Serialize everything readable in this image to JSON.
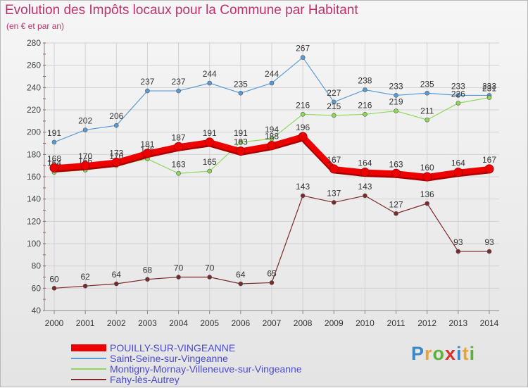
{
  "chart_data": {
    "type": "line",
    "title": "Evolution des Impôts locaux pour la Commune par Habitant",
    "subtitle": "(en € et par an)",
    "xlabel": "",
    "ylabel": "",
    "x": [
      "2000",
      "2001",
      "2002",
      "2003",
      "2004",
      "2005",
      "2006",
      "2007",
      "2008",
      "2009",
      "2010",
      "2011",
      "2012",
      "2013",
      "2014"
    ],
    "ylim": [
      40,
      280
    ],
    "yticks": [
      40,
      60,
      80,
      100,
      120,
      140,
      160,
      180,
      200,
      220,
      240,
      260,
      280
    ],
    "grid": true,
    "legend_position": "bottom-left",
    "series": [
      {
        "name": "Saint-Seine-sur-Vingeanne",
        "color": "#5b9bd5",
        "values": [
          191,
          202,
          206,
          237,
          237,
          244,
          235,
          244,
          267,
          227,
          238,
          233,
          235,
          233,
          233
        ]
      },
      {
        "name": "Montigny-Mornay-Villeneuve-sur-Vingeanne",
        "color": "#8fd65a",
        "values": [
          164,
          166,
          170,
          176,
          163,
          165,
          191,
          194,
          216,
          215,
          216,
          219,
          211,
          226,
          231
        ]
      },
      {
        "name": "Fahy-lès-Autrey",
        "color": "#7a2a2a",
        "values": [
          60,
          62,
          64,
          68,
          70,
          70,
          64,
          65,
          143,
          137,
          143,
          127,
          136,
          93,
          93
        ]
      },
      {
        "name": "POUILLY-SUR-VINGEANNE",
        "color": "#ee0000",
        "highlight": true,
        "values": [
          168,
          170,
          173,
          181,
          187,
          191,
          183,
          188,
          196,
          167,
          164,
          163,
          160,
          164,
          167
        ]
      }
    ],
    "legend_order": [
      "POUILLY-SUR-VINGEANNE",
      "Saint-Seine-sur-Vingeanne",
      "Montigny-Mornay-Villeneuve-sur-Vingeanne",
      "Fahy-lès-Autrey"
    ]
  },
  "brand": {
    "logo": "Proxiti"
  }
}
